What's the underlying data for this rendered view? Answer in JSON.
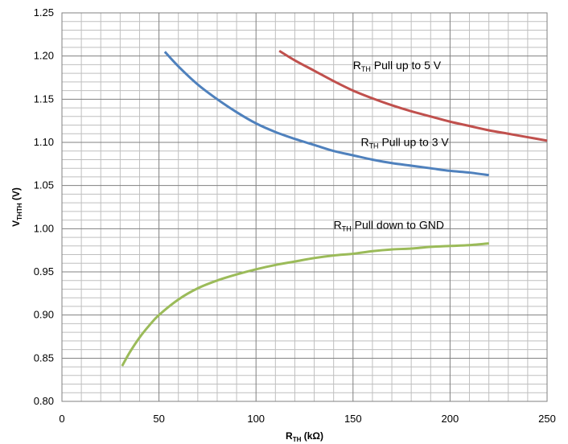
{
  "chart_data": {
    "type": "line",
    "x_axis": {
      "label_main": "R",
      "label_sub": "TH",
      "label_unit": " (kΩ)",
      "min": 0,
      "max": 250,
      "major_step": 50,
      "minor_step": 10,
      "ticks": [
        "0",
        "50",
        "100",
        "150",
        "200",
        "250"
      ]
    },
    "y_axis": {
      "label_main": "V",
      "label_sub": "THTH",
      "label_unit": " (V)",
      "min": 0.8,
      "max": 1.25,
      "major_step": 0.05,
      "minor_step": 0.01,
      "ticks": [
        "0.80",
        "0.85",
        "0.90",
        "0.95",
        "1.00",
        "1.05",
        "1.10",
        "1.15",
        "1.20",
        "1.25"
      ]
    },
    "grid": true,
    "series": [
      {
        "key": "pullup5",
        "label_main": "R",
        "label_sub": "TH",
        "label_rest": " Pull up to 5 V",
        "label_at": [
          150,
          1.185
        ],
        "color": "#c0504d",
        "x": [
          112,
          120,
          130,
          140,
          150,
          160,
          170,
          180,
          190,
          200,
          210,
          220,
          230,
          240,
          250
        ],
        "y": [
          1.206,
          1.195,
          1.183,
          1.171,
          1.16,
          1.151,
          1.143,
          1.136,
          1.13,
          1.124,
          1.119,
          1.114,
          1.11,
          1.106,
          1.102
        ]
      },
      {
        "key": "pullup3",
        "label_main": "R",
        "label_sub": "TH",
        "label_rest": " Pull up to 3 V",
        "label_at": [
          154,
          1.096
        ],
        "color": "#4f81bd",
        "x": [
          53,
          60,
          70,
          80,
          90,
          100,
          110,
          120,
          130,
          140,
          150,
          160,
          170,
          180,
          190,
          200,
          210,
          220
        ],
        "y": [
          1.205,
          1.188,
          1.167,
          1.15,
          1.135,
          1.122,
          1.112,
          1.104,
          1.097,
          1.09,
          1.085,
          1.08,
          1.076,
          1.073,
          1.07,
          1.067,
          1.065,
          1.062
        ]
      },
      {
        "key": "pulldown",
        "label_main": "R",
        "label_sub": "TH",
        "label_rest": " Pull down to GND",
        "label_at": [
          140,
          1.0
        ],
        "color": "#9bbb59",
        "x": [
          31,
          35,
          40,
          45,
          50,
          60,
          70,
          80,
          90,
          100,
          110,
          120,
          130,
          140,
          150,
          160,
          170,
          180,
          190,
          200,
          210,
          220
        ],
        "y": [
          0.841,
          0.857,
          0.874,
          0.888,
          0.9,
          0.918,
          0.931,
          0.94,
          0.947,
          0.953,
          0.958,
          0.962,
          0.966,
          0.969,
          0.971,
          0.974,
          0.976,
          0.977,
          0.979,
          0.98,
          0.981,
          0.983
        ]
      }
    ]
  }
}
